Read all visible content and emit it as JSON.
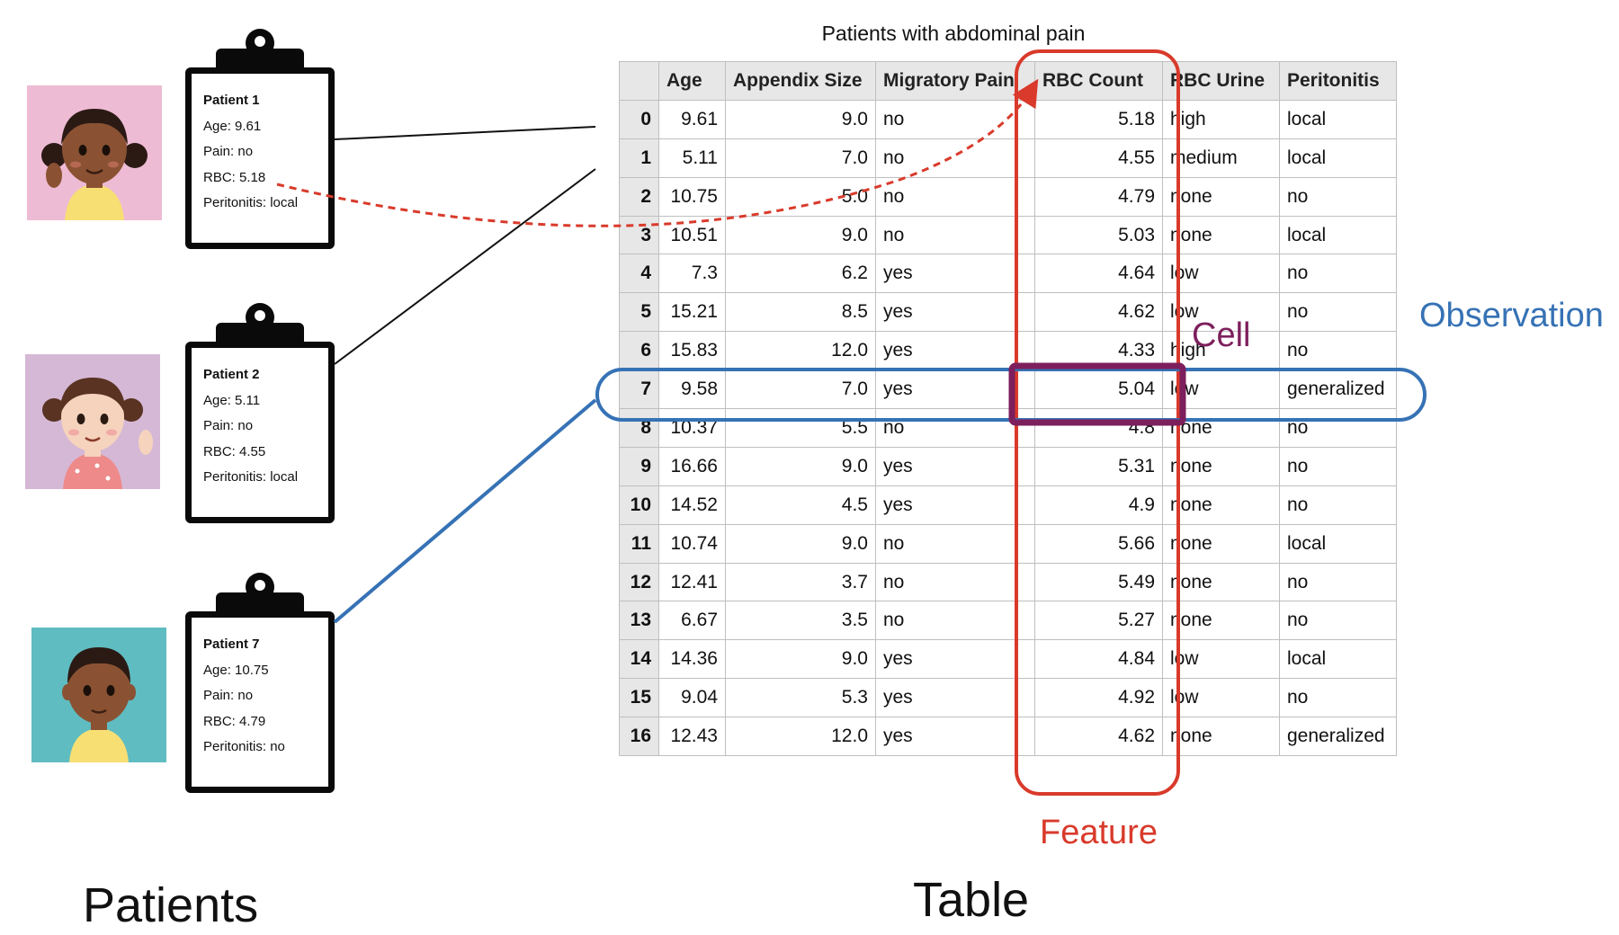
{
  "table": {
    "title": "Patients with abdominal pain",
    "columns": [
      "",
      "Age",
      "Appendix Size",
      "Migratory Pain",
      "RBC Count",
      "RBC Urine",
      "Peritonitis"
    ],
    "rows": [
      [
        "0",
        "9.61",
        "9.0",
        "no",
        "5.18",
        "high",
        "local"
      ],
      [
        "1",
        "5.11",
        "7.0",
        "no",
        "4.55",
        "medium",
        "local"
      ],
      [
        "2",
        "10.75",
        "5.0",
        "no",
        "4.79",
        "none",
        "no"
      ],
      [
        "3",
        "10.51",
        "9.0",
        "no",
        "5.03",
        "none",
        "local"
      ],
      [
        "4",
        "7.3",
        "6.2",
        "yes",
        "4.64",
        "low",
        "no"
      ],
      [
        "5",
        "15.21",
        "8.5",
        "yes",
        "4.62",
        "low",
        "no"
      ],
      [
        "6",
        "15.83",
        "12.0",
        "yes",
        "4.33",
        "high",
        "no"
      ],
      [
        "7",
        "9.58",
        "7.0",
        "yes",
        "5.04",
        "low",
        "generalized"
      ],
      [
        "8",
        "10.37",
        "5.5",
        "no",
        "4.8",
        "none",
        "no"
      ],
      [
        "9",
        "16.66",
        "9.0",
        "yes",
        "5.31",
        "none",
        "no"
      ],
      [
        "10",
        "14.52",
        "4.5",
        "yes",
        "4.9",
        "none",
        "no"
      ],
      [
        "11",
        "10.74",
        "9.0",
        "no",
        "5.66",
        "none",
        "local"
      ],
      [
        "12",
        "12.41",
        "3.7",
        "no",
        "5.49",
        "none",
        "no"
      ],
      [
        "13",
        "6.67",
        "3.5",
        "no",
        "5.27",
        "none",
        "no"
      ],
      [
        "14",
        "14.36",
        "9.0",
        "yes",
        "4.84",
        "low",
        "local"
      ],
      [
        "15",
        "9.04",
        "5.3",
        "yes",
        "4.92",
        "low",
        "no"
      ],
      [
        "16",
        "12.43",
        "12.0",
        "yes",
        "4.62",
        "none",
        "generalized"
      ]
    ]
  },
  "patients": [
    {
      "title": "Patient 1",
      "age": "Age: 9.61",
      "pain": "Pain: no",
      "rbc": "RBC: 5.18",
      "peritonitis": "Peritonitis: local",
      "avatar_bg": "#eebbd4"
    },
    {
      "title": "Patient 2",
      "age": "Age: 5.11",
      "pain": "Pain: no",
      "rbc": "RBC: 4.55",
      "peritonitis": "Peritonitis: local",
      "avatar_bg": "#d5b8d6"
    },
    {
      "title": "Patient 7",
      "age": "Age: 10.75",
      "pain": "Pain: no",
      "rbc": "RBC: 4.79",
      "peritonitis": "Peritonitis: no",
      "avatar_bg": "#5fbcc0"
    }
  ],
  "labels": {
    "patients": "Patients",
    "table": "Table",
    "cell": "Cell",
    "observation": "Observation",
    "feature": "Feature"
  },
  "colors": {
    "feature": "#d93a2b",
    "observation": "#3672b5",
    "cell": "#7d1f5c"
  }
}
